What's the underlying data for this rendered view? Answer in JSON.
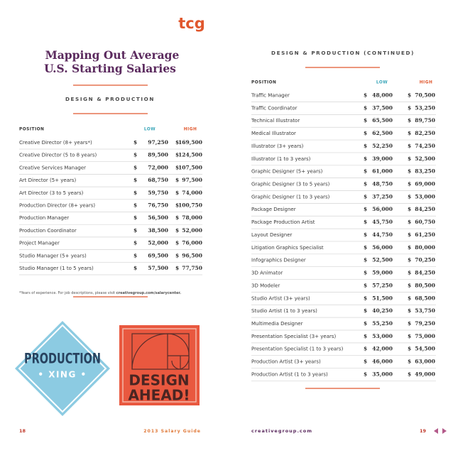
{
  "logo": "tcg",
  "left_page": {
    "title": [
      "Mapping Out Average",
      "U.S. Starting Salaries"
    ],
    "section": "DESIGN & PRODUCTION",
    "table": {
      "header": [
        "POSITION",
        "LOW",
        "HIGH"
      ],
      "currency": "$",
      "rows": [
        [
          "Creative Director (8+ years*)",
          "97,250",
          "169,500"
        ],
        [
          "Creative Director (5 to 8 years)",
          "89,500",
          "124,500"
        ],
        [
          "Creative Services Manager",
          "72,000",
          "107,500"
        ],
        [
          "Art Director (5+ years)",
          "68,750",
          "97,500"
        ],
        [
          "Art Director (3 to 5 years)",
          "59,750",
          "74,000"
        ],
        [
          "Production Director (8+ years)",
          "76,750",
          "100,750"
        ],
        [
          "Production Manager",
          "56,500",
          "78,000"
        ],
        [
          "Production Coordinator",
          "38,500",
          "52,000"
        ],
        [
          "Project Manager",
          "52,000",
          "76,000"
        ],
        [
          "Studio Manager (5+ years)",
          "69,500",
          "96,500"
        ],
        [
          "Studio Manager (1 to 5 years)",
          "57,500",
          "77,750"
        ]
      ]
    },
    "footnote": [
      "*Years of experience. For job descriptions, please visit ",
      "creativegroup.com/salarycenter."
    ],
    "signs": {
      "xing": [
        "PRODUCTION",
        "• XING •"
      ],
      "design": [
        "DESIGN",
        "AHEAD!"
      ]
    },
    "page_number": "18",
    "footer": "2013 Salary Guide"
  },
  "right_page": {
    "section": "DESIGN & PRODUCTION (CONTINUED)",
    "table": {
      "header": [
        "POSITION",
        "LOW",
        "HIGH"
      ],
      "currency": "$",
      "rows": [
        [
          "Traffic Manager",
          "48,000",
          "70,500"
        ],
        [
          "Traffic Coordinator",
          "37,500",
          "53,250"
        ],
        [
          "Technical Illustrator",
          "65,500",
          "89,750"
        ],
        [
          "Medical Illustrator",
          "62,500",
          "82,250"
        ],
        [
          "Illustrator (3+ years)",
          "52,250",
          "74,250"
        ],
        [
          "Illustrator (1 to 3 years)",
          "39,000",
          "52,500"
        ],
        [
          "Graphic Designer (5+ years)",
          "61,000",
          "83,250"
        ],
        [
          "Graphic Designer (3 to 5 years)",
          "48,750",
          "69,000"
        ],
        [
          "Graphic Designer (1 to 3 years)",
          "37,250",
          "53,000"
        ],
        [
          "Package Designer",
          "56,000",
          "84,250"
        ],
        [
          "Package Production Artist",
          "45,750",
          "60,750"
        ],
        [
          "Layout Designer",
          "44,750",
          "61,250"
        ],
        [
          "Litigation Graphics Specialist",
          "56,000",
          "80,000"
        ],
        [
          "Infographics Designer",
          "52,500",
          "70,250"
        ],
        [
          "3D Animator",
          "59,000",
          "84,250"
        ],
        [
          "3D Modeler",
          "57,250",
          "80,500"
        ],
        [
          "Studio Artist (3+ years)",
          "51,500",
          "68,500"
        ],
        [
          "Studio Artist (1 to 3 years)",
          "40,250",
          "53,750"
        ],
        [
          "Multimedia Designer",
          "55,250",
          "79,250"
        ],
        [
          "Presentation Specialist (3+ years)",
          "53,000",
          "75,000"
        ],
        [
          "Presentation Specialist (1 to 3 years)",
          "42,000",
          "54,500"
        ],
        [
          "Production Artist (3+ years)",
          "46,000",
          "63,000"
        ],
        [
          "Production Artist (1 to 3 years)",
          "35,000",
          "49,000"
        ]
      ]
    },
    "website": "creativegroup.com",
    "page_number": "19"
  }
}
